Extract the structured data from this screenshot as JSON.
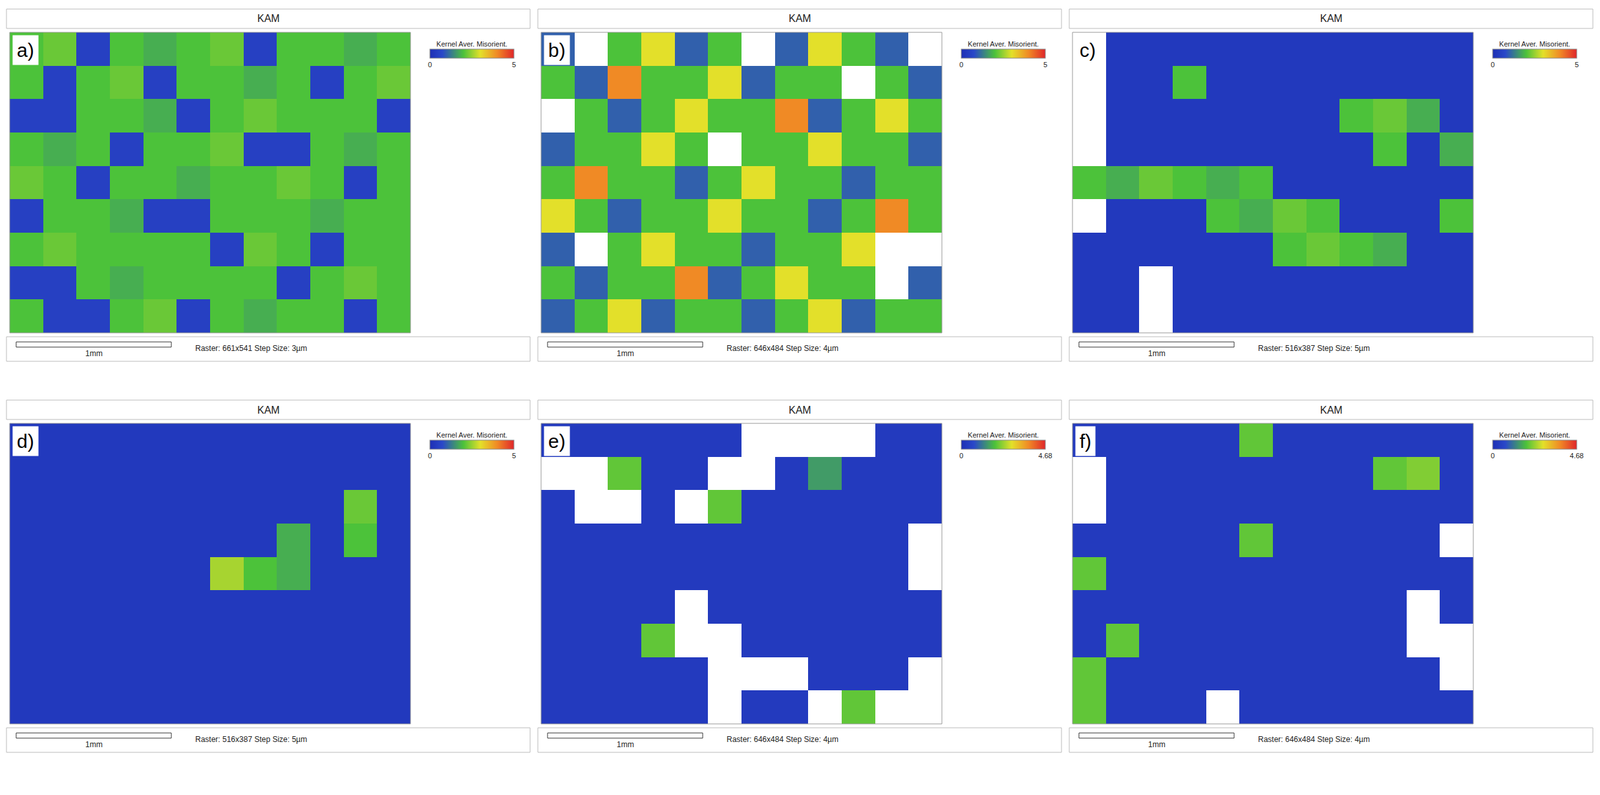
{
  "chart_data": [
    {
      "type": "heatmap",
      "panel": "a)",
      "title": "KAM",
      "colorbar_title": "Kernel Aver. Misorient.",
      "zlim": [
        0,
        5
      ],
      "zticks": [
        0,
        5
      ],
      "scale_bar": "1mm",
      "caption": "Raster: 661x541 Step Size: 3µm",
      "tick_labels": false,
      "z": [
        [
          2,
          2.2,
          0.5,
          2,
          1.8,
          2,
          2.2,
          0.5,
          2,
          2,
          1.8,
          2
        ],
        [
          2,
          0.5,
          2,
          2.2,
          0.5,
          2,
          2,
          1.8,
          2,
          0.5,
          2,
          2.2
        ],
        [
          0.5,
          0.5,
          2,
          2,
          1.8,
          0.5,
          2,
          2.2,
          2,
          2,
          2,
          0.5
        ],
        [
          2,
          1.8,
          2,
          0.5,
          2,
          2,
          2.2,
          0.5,
          0.5,
          2,
          1.8,
          2
        ],
        [
          2.2,
          2,
          0.5,
          2,
          2,
          1.8,
          2,
          2,
          2.2,
          2,
          0.5,
          2
        ],
        [
          0.5,
          2,
          2,
          1.8,
          0.5,
          0.5,
          2,
          2,
          2,
          1.8,
          2,
          2
        ],
        [
          2,
          2.2,
          2,
          2,
          2,
          2,
          0.5,
          2.2,
          2,
          0.5,
          2,
          2
        ],
        [
          0.5,
          0.5,
          2,
          1.8,
          2,
          2,
          2,
          2,
          0.5,
          2,
          2.2,
          2
        ],
        [
          2,
          0.5,
          0.5,
          2,
          2.2,
          0.5,
          2,
          1.8,
          2,
          2,
          0.5,
          2
        ]
      ]
    },
    {
      "type": "heatmap",
      "panel": "b)",
      "title": "KAM",
      "colorbar_title": "Kernel Aver. Misorient.",
      "zlim": [
        0,
        5
      ],
      "zticks": [
        0,
        5
      ],
      "scale_bar": "1mm",
      "caption": "Raster: 646x484 Step Size: 4µm",
      "tick_labels": false,
      "z": [
        [
          1,
          null,
          2,
          3,
          1,
          2,
          null,
          1,
          3,
          2,
          1,
          null
        ],
        [
          2,
          1,
          4,
          2,
          2,
          3,
          1,
          2,
          2,
          null,
          2,
          1
        ],
        [
          null,
          2,
          1,
          2,
          3,
          2,
          2,
          4,
          1,
          2,
          3,
          2
        ],
        [
          1,
          2,
          2,
          3,
          2,
          null,
          2,
          2,
          3,
          2,
          2,
          1
        ],
        [
          2,
          4,
          2,
          2,
          1,
          2,
          3,
          2,
          2,
          1,
          2,
          2
        ],
        [
          3,
          2,
          1,
          2,
          2,
          3,
          2,
          2,
          1,
          2,
          4,
          2
        ],
        [
          1,
          null,
          2,
          3,
          2,
          2,
          1,
          2,
          2,
          3,
          null,
          null
        ],
        [
          2,
          1,
          2,
          2,
          4,
          1,
          2,
          3,
          2,
          2,
          null,
          1
        ],
        [
          1,
          2,
          3,
          1,
          2,
          2,
          1,
          2,
          3,
          1,
          2,
          2
        ]
      ]
    },
    {
      "type": "heatmap",
      "panel": "c)",
      "title": "KAM",
      "colorbar_title": "Kernel Aver. Misorient.",
      "zlim": [
        0,
        5
      ],
      "zticks": [
        0,
        5
      ],
      "scale_bar": "1mm",
      "caption": "Raster: 516x387 Step Size: 5µm",
      "tick_labels": false,
      "z": [
        [
          null,
          0.3,
          0.3,
          0.3,
          0.3,
          0.3,
          0.3,
          0.3,
          0.3,
          0.3,
          0.3,
          0.3
        ],
        [
          null,
          0.3,
          0.3,
          2,
          0.3,
          0.3,
          0.3,
          0.3,
          0.3,
          0.3,
          0.3,
          0.3
        ],
        [
          null,
          0.3,
          0.3,
          0.3,
          0.3,
          0.3,
          0.3,
          0.3,
          2,
          2.2,
          1.8,
          0.3
        ],
        [
          null,
          0.3,
          0.3,
          0.3,
          0.3,
          0.3,
          0.3,
          0.3,
          0.3,
          2,
          0.3,
          1.8
        ],
        [
          2,
          1.8,
          2.2,
          2,
          1.8,
          2,
          0.3,
          0.3,
          0.3,
          0.3,
          0.3,
          0.3
        ],
        [
          null,
          0.3,
          0.3,
          0.3,
          2,
          1.8,
          2.2,
          2,
          0.3,
          0.3,
          0.3,
          2
        ],
        [
          0.3,
          0.3,
          0.3,
          0.3,
          0.3,
          0.3,
          2,
          2.2,
          2,
          1.8,
          0.3,
          0.3
        ],
        [
          0.3,
          0.3,
          null,
          0.3,
          0.3,
          0.3,
          0.3,
          0.3,
          0.3,
          0.3,
          0.3,
          0.3
        ],
        [
          0.3,
          0.3,
          null,
          0.3,
          0.3,
          0.3,
          0.3,
          0.3,
          0.3,
          0.3,
          0.3,
          0.3
        ]
      ]
    },
    {
      "type": "heatmap",
      "panel": "d)",
      "title": "KAM",
      "colorbar_title": "Kernel Aver. Misorient.",
      "zlim": [
        0,
        5
      ],
      "zticks": [
        0,
        5
      ],
      "scale_bar": "1mm",
      "caption": "Raster: 516x387 Step Size: 5µm",
      "tick_labels": false,
      "z": [
        [
          0.3,
          0.3,
          0.3,
          0.3,
          0.3,
          0.3,
          0.3,
          0.3,
          0.3,
          0.3,
          0.3,
          0.3
        ],
        [
          0.3,
          0.3,
          0.3,
          0.3,
          0.3,
          0.3,
          0.3,
          0.3,
          0.3,
          0.3,
          0.3,
          0.3
        ],
        [
          0.3,
          0.3,
          0.3,
          0.3,
          0.3,
          0.3,
          0.3,
          0.3,
          0.3,
          0.3,
          2.2,
          0.3
        ],
        [
          0.3,
          0.3,
          0.3,
          0.3,
          0.3,
          0.3,
          0.3,
          0.3,
          1.8,
          0.3,
          2,
          0.3
        ],
        [
          0.3,
          0.3,
          0.3,
          0.3,
          0.3,
          0.3,
          2.6,
          2,
          1.8,
          0.3,
          0.3,
          0.3
        ],
        [
          0.3,
          0.3,
          0.3,
          0.3,
          0.3,
          0.3,
          0.3,
          0.3,
          0.3,
          0.3,
          0.3,
          0.3
        ],
        [
          0.3,
          0.3,
          0.3,
          0.3,
          0.3,
          0.3,
          0.3,
          0.3,
          0.3,
          0.3,
          0.3,
          0.3
        ],
        [
          0.3,
          0.3,
          0.3,
          0.3,
          0.3,
          0.3,
          0.3,
          0.3,
          0.3,
          0.3,
          0.3,
          0.3
        ],
        [
          0.3,
          0.3,
          0.3,
          0.3,
          0.3,
          0.3,
          0.3,
          0.3,
          0.3,
          0.3,
          0.3,
          0.3
        ]
      ]
    },
    {
      "type": "heatmap",
      "panel": "e)",
      "title": "KAM",
      "colorbar_title": "Kernel Aver. Misorient.",
      "zlim": [
        0,
        4.68
      ],
      "zticks": [
        0,
        4.68
      ],
      "scale_bar": "1mm",
      "caption": "Raster: 646x484 Step Size: 4µm",
      "tick_labels": false,
      "z": [
        [
          0.3,
          0.3,
          0.3,
          0.3,
          0.3,
          0.3,
          null,
          null,
          null,
          null,
          0.3,
          0.3
        ],
        [
          null,
          null,
          2,
          0.3,
          0.3,
          null,
          null,
          0.3,
          1.5,
          0.3,
          0.3,
          0.3
        ],
        [
          0.3,
          null,
          null,
          0.3,
          null,
          2,
          0.3,
          0.3,
          0.3,
          0.3,
          0.3,
          0.3
        ],
        [
          0.3,
          0.3,
          0.3,
          0.3,
          0.3,
          0.3,
          0.3,
          0.3,
          0.3,
          0.3,
          0.3,
          null
        ],
        [
          0.3,
          0.3,
          0.3,
          0.3,
          0.3,
          0.3,
          0.3,
          0.3,
          0.3,
          0.3,
          0.3,
          null
        ],
        [
          0.3,
          0.3,
          0.3,
          0.3,
          null,
          0.3,
          0.3,
          0.3,
          0.3,
          0.3,
          0.3,
          0.3
        ],
        [
          0.3,
          0.3,
          0.3,
          2,
          null,
          null,
          0.3,
          0.3,
          0.3,
          0.3,
          0.3,
          0.3
        ],
        [
          0.3,
          0.3,
          0.3,
          0.3,
          0.3,
          null,
          null,
          null,
          0.3,
          0.3,
          0.3,
          null
        ],
        [
          0.3,
          0.3,
          0.3,
          0.3,
          0.3,
          null,
          0.3,
          0.3,
          null,
          2,
          null,
          null
        ]
      ]
    },
    {
      "type": "heatmap",
      "panel": "f)",
      "title": "KAM",
      "colorbar_title": "Kernel Aver. Misorient.",
      "zlim": [
        0,
        4.68
      ],
      "zticks": [
        0,
        4.68
      ],
      "scale_bar": "1mm",
      "caption": "Raster: 646x484 Step Size: 4µm",
      "tick_labels": false,
      "z": [
        [
          0.3,
          0.3,
          0.3,
          0.3,
          0.3,
          2,
          0.3,
          0.3,
          0.3,
          0.3,
          0.3,
          0.3
        ],
        [
          null,
          0.3,
          0.3,
          0.3,
          0.3,
          0.3,
          0.3,
          0.3,
          0.3,
          2,
          2.2,
          0.3
        ],
        [
          null,
          0.3,
          0.3,
          0.3,
          0.3,
          0.3,
          0.3,
          0.3,
          0.3,
          0.3,
          0.3,
          0.3
        ],
        [
          0.3,
          0.3,
          0.3,
          0.3,
          0.3,
          2,
          0.3,
          0.3,
          0.3,
          0.3,
          0.3,
          null
        ],
        [
          2,
          0.3,
          0.3,
          0.3,
          0.3,
          0.3,
          0.3,
          0.3,
          0.3,
          0.3,
          0.3,
          0.3
        ],
        [
          0.3,
          0.3,
          0.3,
          0.3,
          0.3,
          0.3,
          0.3,
          0.3,
          0.3,
          0.3,
          null,
          0.3
        ],
        [
          0.3,
          2,
          0.3,
          0.3,
          0.3,
          0.3,
          0.3,
          0.3,
          0.3,
          0.3,
          null,
          null
        ],
        [
          2,
          0.3,
          0.3,
          0.3,
          0.3,
          0.3,
          0.3,
          0.3,
          0.3,
          0.3,
          0.3,
          null
        ],
        [
          2,
          0.3,
          0.3,
          0.3,
          null,
          0.3,
          0.3,
          0.3,
          0.3,
          0.3,
          0.3,
          0.3
        ]
      ]
    }
  ]
}
